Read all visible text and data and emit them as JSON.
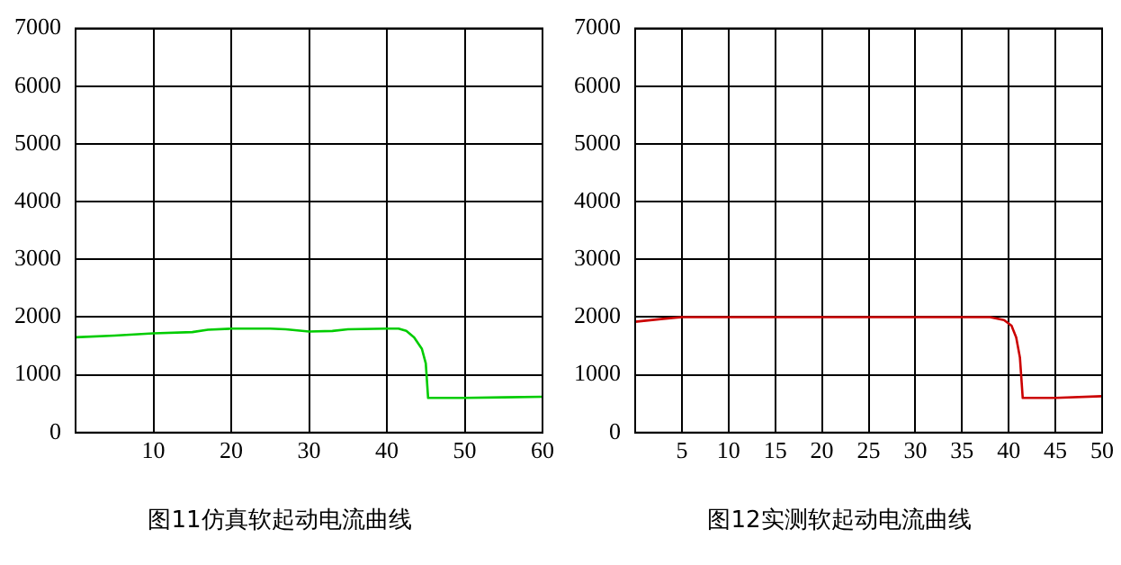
{
  "chart_data": [
    {
      "type": "line",
      "x": [
        0,
        5,
        10,
        15,
        17,
        20,
        25,
        27,
        30,
        33,
        35,
        40,
        41.5,
        42.5,
        43.5,
        44.5,
        45,
        45.3,
        50,
        55,
        60
      ],
      "series": [
        {
          "color": "#00cc00",
          "values": [
            1650,
            1680,
            1720,
            1740,
            1780,
            1800,
            1800,
            1790,
            1750,
            1760,
            1790,
            1800,
            1800,
            1760,
            1650,
            1450,
            1200,
            600,
            600,
            610,
            620
          ]
        }
      ],
      "xlim": [
        0,
        60
      ],
      "xticks": [
        {
          "value": 0,
          "label": null
        },
        10,
        20,
        30,
        40,
        50,
        60
      ],
      "ylim": [
        0,
        7000
      ],
      "yticks": [
        0,
        1000,
        2000,
        3000,
        4000,
        5000,
        6000,
        7000
      ],
      "grid": true,
      "legend": false,
      "marker": "none",
      "line_style": "solid",
      "annotations": [
        "图11仿真软起动电流曲线"
      ]
    },
    {
      "type": "line",
      "x": [
        0,
        3,
        5,
        10,
        20,
        30,
        38,
        39.5,
        40.3,
        40.8,
        41.2,
        41.5,
        45,
        50
      ],
      "series": [
        {
          "color": "#cc0000",
          "values": [
            1920,
            1970,
            2000,
            2000,
            2000,
            2000,
            2000,
            1950,
            1850,
            1650,
            1300,
            600,
            600,
            630
          ]
        }
      ],
      "xlim": [
        0,
        50
      ],
      "xticks": [
        {
          "value": 0,
          "label": null
        },
        5,
        10,
        15,
        20,
        25,
        30,
        35,
        40,
        45,
        50
      ],
      "ylim": [
        0,
        7000
      ],
      "yticks": [
        0,
        1000,
        2000,
        3000,
        4000,
        5000,
        6000,
        7000
      ],
      "grid": true,
      "legend": false,
      "marker": "none",
      "line_style": "solid",
      "annotations": [
        "图12实测软起动电流曲线"
      ]
    }
  ]
}
